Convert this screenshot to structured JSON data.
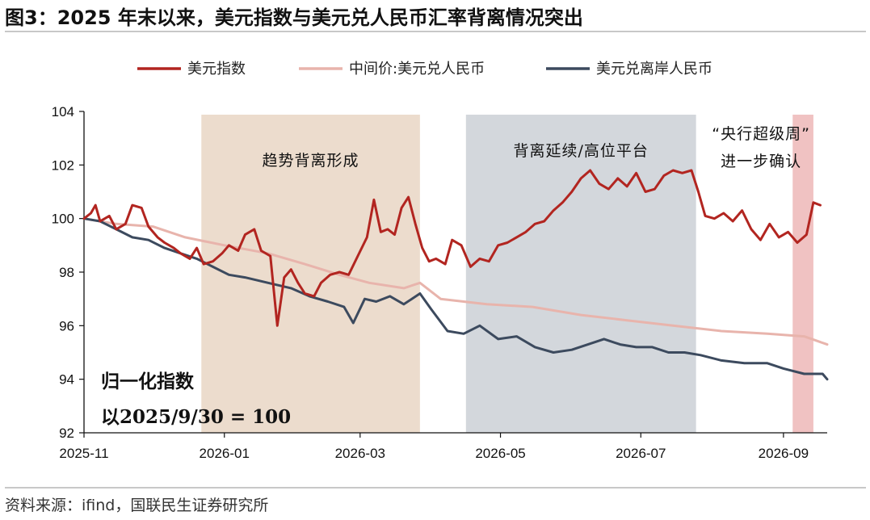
{
  "figure": {
    "title": "图3：2025 年末以来，美元指数与美元兑人民币汇率背离情况突出",
    "source": "资料来源：ifind，国联民生证券研究所"
  },
  "chart_data": {
    "type": "line",
    "x_type": "date",
    "xlim": [
      "2025-11-01",
      "2026-09-20"
    ],
    "ylim": [
      92,
      104
    ],
    "y_ticks": [
      92,
      94,
      96,
      98,
      100,
      102,
      104
    ],
    "x_ticks": [
      {
        "date": "2025-11-01",
        "label": "2025-11"
      },
      {
        "date": "2026-01-01",
        "label": "2026-01"
      },
      {
        "date": "2026-03-01",
        "label": "2026-03"
      },
      {
        "date": "2026-05-01",
        "label": "2026-05"
      },
      {
        "date": "2026-07-01",
        "label": "2026-07"
      },
      {
        "date": "2026-09-01",
        "label": "2026-09"
      }
    ],
    "grid": false,
    "legend_position": "top",
    "note_lines": [
      "归一化指数",
      "以2025/9/30 = 100"
    ],
    "bands": [
      {
        "start": "2025-12-22",
        "end": "2026-03-27",
        "color": "#ecdccd",
        "label_lines": [
          "趋势背离形成"
        ]
      },
      {
        "start": "2026-04-16",
        "end": "2026-07-25",
        "color": "#d3d7dc",
        "label_lines": [
          "背离延续/高位平台"
        ]
      },
      {
        "start": "2026-09-05",
        "end": "2026-09-14",
        "color": "#f0c2c2",
        "label_lines": [
          "“央行超级周”",
          "进一步确认"
        ]
      }
    ],
    "series": [
      {
        "name": "美元指数",
        "color": "#b22520",
        "x": [
          "2025-11-01",
          "2025-11-04",
          "2025-11-06",
          "2025-11-08",
          "2025-11-12",
          "2025-11-15",
          "2025-11-19",
          "2025-11-22",
          "2025-11-26",
          "2025-11-29",
          "2025-12-03",
          "2025-12-06",
          "2025-12-10",
          "2025-12-13",
          "2025-12-17",
          "2025-12-20",
          "2025-12-23",
          "2025-12-27",
          "2025-12-31",
          "2026-01-03",
          "2026-01-07",
          "2026-01-10",
          "2026-01-14",
          "2026-01-17",
          "2026-01-21",
          "2026-01-24",
          "2026-01-27",
          "2026-01-30",
          "2026-02-02",
          "2026-02-05",
          "2026-02-09",
          "2026-02-12",
          "2026-02-16",
          "2026-02-20",
          "2026-02-24",
          "2026-02-28",
          "2026-03-04",
          "2026-03-07",
          "2026-03-10",
          "2026-03-13",
          "2026-03-16",
          "2026-03-19",
          "2026-03-22",
          "2026-03-25",
          "2026-03-28",
          "2026-03-31",
          "2026-04-03",
          "2026-04-07",
          "2026-04-10",
          "2026-04-14",
          "2026-04-18",
          "2026-04-22",
          "2026-04-26",
          "2026-04-30",
          "2026-05-04",
          "2026-05-08",
          "2026-05-12",
          "2026-05-16",
          "2026-05-20",
          "2026-05-24",
          "2026-05-28",
          "2026-06-01",
          "2026-06-05",
          "2026-06-09",
          "2026-06-13",
          "2026-06-17",
          "2026-06-21",
          "2026-06-25",
          "2026-06-29",
          "2026-07-03",
          "2026-07-07",
          "2026-07-11",
          "2026-07-15",
          "2026-07-19",
          "2026-07-23",
          "2026-07-26",
          "2026-07-29",
          "2026-08-02",
          "2026-08-06",
          "2026-08-10",
          "2026-08-14",
          "2026-08-18",
          "2026-08-22",
          "2026-08-26",
          "2026-08-30",
          "2026-09-03",
          "2026-09-07",
          "2026-09-11",
          "2026-09-14",
          "2026-09-17"
        ],
        "values": [
          100.0,
          100.2,
          100.5,
          99.9,
          100.1,
          99.6,
          99.8,
          100.5,
          100.4,
          99.7,
          99.3,
          99.1,
          98.9,
          98.7,
          98.5,
          98.9,
          98.3,
          98.4,
          98.7,
          99.0,
          98.8,
          99.4,
          99.6,
          98.8,
          98.6,
          96.0,
          97.8,
          98.1,
          97.6,
          97.2,
          97.1,
          97.6,
          97.9,
          98.0,
          97.9,
          98.6,
          99.3,
          100.7,
          99.5,
          99.6,
          99.4,
          100.4,
          100.8,
          99.8,
          98.9,
          98.4,
          98.5,
          98.3,
          99.2,
          99.0,
          98.2,
          98.5,
          98.4,
          99.0,
          99.1,
          99.3,
          99.5,
          99.8,
          99.9,
          100.3,
          100.6,
          101.0,
          101.5,
          101.8,
          101.3,
          101.1,
          101.5,
          101.2,
          101.7,
          101.0,
          101.1,
          101.6,
          101.8,
          101.7,
          101.8,
          101.0,
          100.1,
          100.0,
          100.2,
          99.9,
          100.3,
          99.6,
          99.2,
          99.8,
          99.3,
          99.5,
          99.1,
          99.4,
          100.6,
          100.5
        ]
      },
      {
        "name": "中间价:美元兑人民币",
        "color": "#e8b4ac",
        "x": [
          "2025-11-01",
          "2025-11-15",
          "2025-12-01",
          "2025-12-15",
          "2026-01-01",
          "2026-01-20",
          "2026-02-05",
          "2026-02-20",
          "2026-03-05",
          "2026-03-20",
          "2026-03-27",
          "2026-04-05",
          "2026-04-25",
          "2026-05-15",
          "2026-06-05",
          "2026-06-25",
          "2026-07-15",
          "2026-08-05",
          "2026-08-25",
          "2026-09-10",
          "2026-09-20"
        ],
        "values": [
          100.0,
          99.8,
          99.7,
          99.3,
          99.0,
          98.7,
          98.3,
          97.9,
          97.6,
          97.4,
          97.6,
          97.0,
          96.8,
          96.7,
          96.4,
          96.2,
          96.0,
          95.8,
          95.7,
          95.6,
          95.3
        ]
      },
      {
        "name": "美元兑离岸人民币",
        "color": "#3c4a5e",
        "x": [
          "2025-11-01",
          "2025-11-08",
          "2025-11-15",
          "2025-11-22",
          "2025-11-29",
          "2025-12-06",
          "2025-12-13",
          "2025-12-20",
          "2025-12-27",
          "2026-01-03",
          "2026-01-10",
          "2026-01-20",
          "2026-01-30",
          "2026-02-07",
          "2026-02-15",
          "2026-02-22",
          "2026-02-26",
          "2026-03-03",
          "2026-03-08",
          "2026-03-14",
          "2026-03-20",
          "2026-03-27",
          "2026-04-01",
          "2026-04-08",
          "2026-04-15",
          "2026-04-22",
          "2026-04-30",
          "2026-05-08",
          "2026-05-16",
          "2026-05-24",
          "2026-06-01",
          "2026-06-08",
          "2026-06-15",
          "2026-06-22",
          "2026-06-29",
          "2026-07-06",
          "2026-07-13",
          "2026-07-20",
          "2026-07-27",
          "2026-08-05",
          "2026-08-15",
          "2026-08-25",
          "2026-09-01",
          "2026-09-10",
          "2026-09-18",
          "2026-09-20"
        ],
        "values": [
          100.0,
          99.9,
          99.6,
          99.3,
          99.2,
          98.9,
          98.7,
          98.5,
          98.2,
          97.9,
          97.8,
          97.6,
          97.4,
          97.1,
          96.9,
          96.7,
          96.1,
          97.0,
          96.9,
          97.1,
          96.8,
          97.2,
          96.6,
          95.8,
          95.7,
          96.0,
          95.5,
          95.6,
          95.2,
          95.0,
          95.1,
          95.3,
          95.5,
          95.3,
          95.2,
          95.2,
          95.0,
          95.0,
          94.9,
          94.7,
          94.6,
          94.6,
          94.4,
          94.2,
          94.2,
          94.0
        ]
      }
    ]
  }
}
